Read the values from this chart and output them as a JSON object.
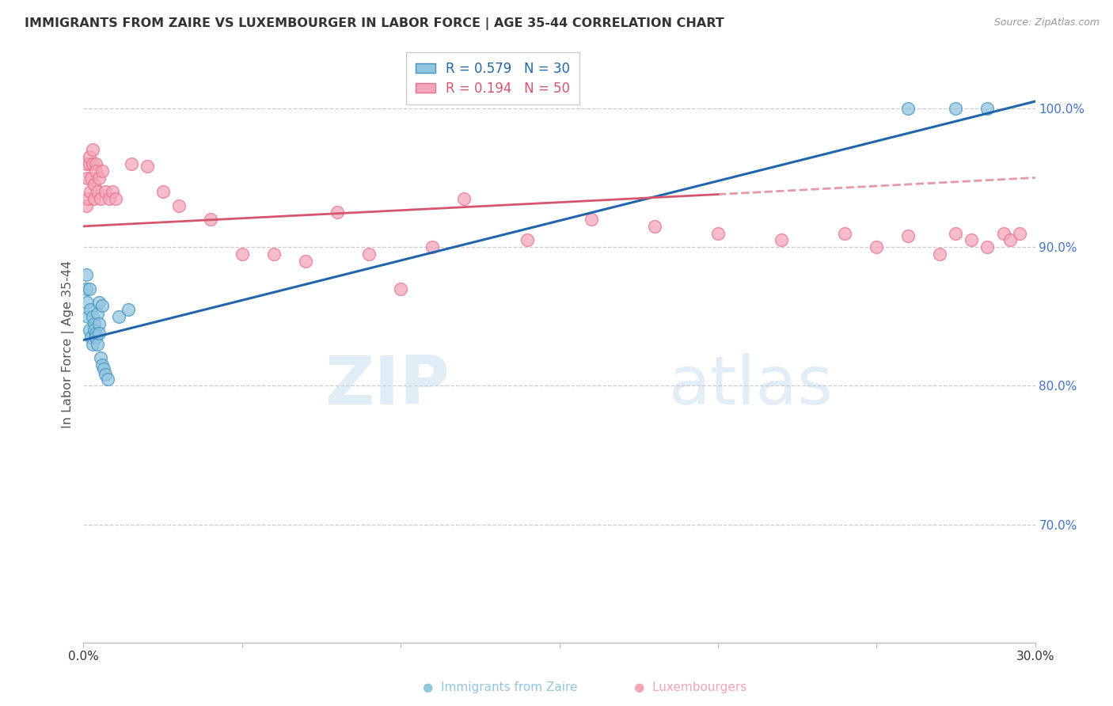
{
  "title": "IMMIGRANTS FROM ZAIRE VS LUXEMBOURGER IN LABOR FORCE | AGE 35-44 CORRELATION CHART",
  "source": "Source: ZipAtlas.com",
  "ylabel": "In Labor Force | Age 35-44",
  "ylabel_color": "#555555",
  "right_ytick_color": "#4472c4",
  "right_yticks": [
    0.7,
    0.8,
    0.9,
    1.0
  ],
  "right_ytick_labels": [
    "70.0%",
    "80.0%",
    "90.0%",
    "100.0%"
  ],
  "xlim": [
    0.0,
    0.3
  ],
  "ylim": [
    0.615,
    1.045
  ],
  "blue_color": "#92c5de",
  "pink_color": "#f4a6b8",
  "blue_edge_color": "#4393c3",
  "pink_edge_color": "#e87090",
  "blue_line_color": "#2166ac",
  "pink_line_color": "#d6556e",
  "legend_blue_label": "R = 0.579   N = 30",
  "legend_pink_label": "R = 0.194   N = 50",
  "blue_x": [
    0.0008,
    0.001,
    0.0012,
    0.0015,
    0.0018,
    0.002,
    0.0022,
    0.0025,
    0.0028,
    0.003,
    0.0033,
    0.0035,
    0.0038,
    0.004,
    0.0043,
    0.0045,
    0.0048,
    0.005,
    0.0055,
    0.006,
    0.0065,
    0.007,
    0.0075,
    0.005,
    0.006,
    0.011,
    0.014,
    0.26,
    0.275,
    0.285
  ],
  "blue_y": [
    0.88,
    0.87,
    0.86,
    0.85,
    0.84,
    0.87,
    0.855,
    0.835,
    0.83,
    0.85,
    0.845,
    0.84,
    0.838,
    0.835,
    0.83,
    0.852,
    0.845,
    0.838,
    0.82,
    0.815,
    0.812,
    0.808,
    0.805,
    0.86,
    0.858,
    0.85,
    0.855,
    1.0,
    1.0,
    1.0
  ],
  "pink_x": [
    0.0008,
    0.001,
    0.0012,
    0.0015,
    0.0018,
    0.002,
    0.0022,
    0.0025,
    0.0028,
    0.003,
    0.0033,
    0.0035,
    0.0038,
    0.004,
    0.0045,
    0.005,
    0.0055,
    0.006,
    0.007,
    0.008,
    0.009,
    0.01,
    0.015,
    0.02,
    0.025,
    0.03,
    0.04,
    0.05,
    0.06,
    0.07,
    0.08,
    0.09,
    0.1,
    0.11,
    0.12,
    0.14,
    0.16,
    0.18,
    0.2,
    0.22,
    0.24,
    0.25,
    0.26,
    0.27,
    0.275,
    0.28,
    0.285,
    0.29,
    0.292,
    0.295
  ],
  "pink_y": [
    0.93,
    0.96,
    0.95,
    0.935,
    0.96,
    0.965,
    0.94,
    0.95,
    0.96,
    0.97,
    0.935,
    0.945,
    0.96,
    0.955,
    0.94,
    0.95,
    0.935,
    0.955,
    0.94,
    0.935,
    0.94,
    0.935,
    0.96,
    0.958,
    0.94,
    0.93,
    0.92,
    0.895,
    0.895,
    0.89,
    0.925,
    0.895,
    0.87,
    0.9,
    0.935,
    0.905,
    0.92,
    0.915,
    0.91,
    0.905,
    0.91,
    0.9,
    0.908,
    0.895,
    0.91,
    0.905,
    0.9,
    0.91,
    0.905,
    0.91
  ],
  "blue_line_x0": 0.0,
  "blue_line_x1": 0.3,
  "blue_line_y0": 0.833,
  "blue_line_y1": 1.005,
  "pink_line_x0": 0.0,
  "pink_line_solid_x1": 0.2,
  "pink_line_x1": 0.3,
  "pink_line_y0": 0.915,
  "pink_line_solid_y1": 0.938,
  "pink_line_y1": 0.95,
  "watermark_zip": "ZIP",
  "watermark_atlas": "atlas",
  "grid_color": "#cccccc",
  "background_color": "#ffffff"
}
